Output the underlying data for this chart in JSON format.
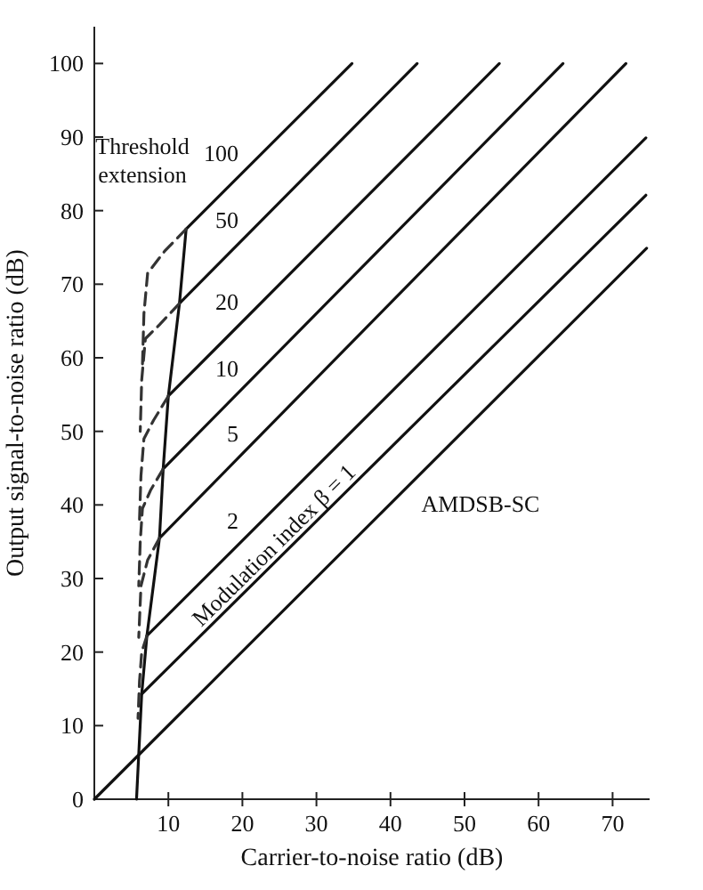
{
  "chart_data": {
    "type": "line",
    "xlabel": "Carrier-to-noise ratio (dB)",
    "ylabel": "Output signal-to-noise ratio (dB)",
    "xlim": [
      0,
      75
    ],
    "ylim": [
      0,
      105
    ],
    "xticks": [
      10,
      20,
      30,
      40,
      50,
      60,
      70
    ],
    "yticks": [
      0,
      10,
      20,
      30,
      40,
      50,
      60,
      70,
      80,
      90,
      100
    ],
    "grid": false,
    "marker": "none",
    "line_style": "solid",
    "series": [
      {
        "color": "#111111",
        "x": [
          0,
          74.6
        ],
        "values": [
          0,
          74.9
        ]
      },
      {
        "name": "Modulation index β = 1",
        "color": "#111111",
        "x": [
          6.4,
          74.5
        ],
        "values": [
          14.3,
          82.1
        ]
      },
      {
        "name": "2",
        "color": "#111111",
        "x": [
          7.1,
          74.5
        ],
        "values": [
          22.2,
          89.9
        ]
      },
      {
        "name": "5",
        "color": "#111111",
        "x": [
          8.8,
          71.8
        ],
        "values": [
          35.5,
          100
        ]
      },
      {
        "name": "10",
        "color": "#111111",
        "x": [
          9.3,
          63.3
        ],
        "values": [
          44.9,
          100
        ]
      },
      {
        "name": "20",
        "color": "#111111",
        "x": [
          10,
          54.7
        ],
        "values": [
          54.8,
          100
        ]
      },
      {
        "name": "50",
        "color": "#111111",
        "x": [
          11.5,
          43.6
        ],
        "values": [
          67.4,
          100
        ]
      },
      {
        "name": "100",
        "color": "#111111",
        "x": [
          12.4,
          34.8
        ],
        "values": [
          77.5,
          100
        ]
      },
      {
        "color": "#111111",
        "x": [
          5.7,
          6.4,
          7.1,
          8.8,
          9.3,
          10,
          11.5,
          12.4
        ],
        "values": [
          0,
          14.3,
          22.2,
          35.5,
          44.9,
          54.8,
          67.4,
          77.5
        ]
      },
      {
        "color": "#333333",
        "line_style": "dashed",
        "x": [
          12.4,
          9.5,
          7.2,
          6.7,
          6.5
        ],
        "values": [
          77.5,
          74.5,
          71.5,
          66,
          59
        ]
      },
      {
        "color": "#333333",
        "line_style": "dashed",
        "x": [
          11.5,
          8.8,
          6.9,
          6.4,
          6.2
        ],
        "values": [
          67.4,
          64.5,
          62.6,
          57,
          50
        ]
      },
      {
        "color": "#333333",
        "line_style": "dashed",
        "x": [
          10,
          8,
          6.7,
          6.3,
          6.1
        ],
        "values": [
          54.8,
          51.5,
          49,
          44,
          38
        ]
      },
      {
        "color": "#333333",
        "line_style": "dashed",
        "x": [
          9.3,
          7.6,
          6.5,
          6.2,
          6
        ],
        "values": [
          44.9,
          42,
          39.5,
          35,
          29
        ]
      },
      {
        "color": "#333333",
        "line_style": "dashed",
        "x": [
          8.8,
          7.2,
          6.3,
          6
        ],
        "values": [
          35.5,
          32.5,
          29,
          22
        ]
      },
      {
        "color": "#333333",
        "line_style": "dashed",
        "x": [
          7.1,
          6.4,
          6.1,
          5.9
        ],
        "values": [
          22.2,
          20,
          16,
          11
        ]
      }
    ],
    "annotations": [
      "AMDSB-SC",
      "Threshold extension"
    ]
  }
}
